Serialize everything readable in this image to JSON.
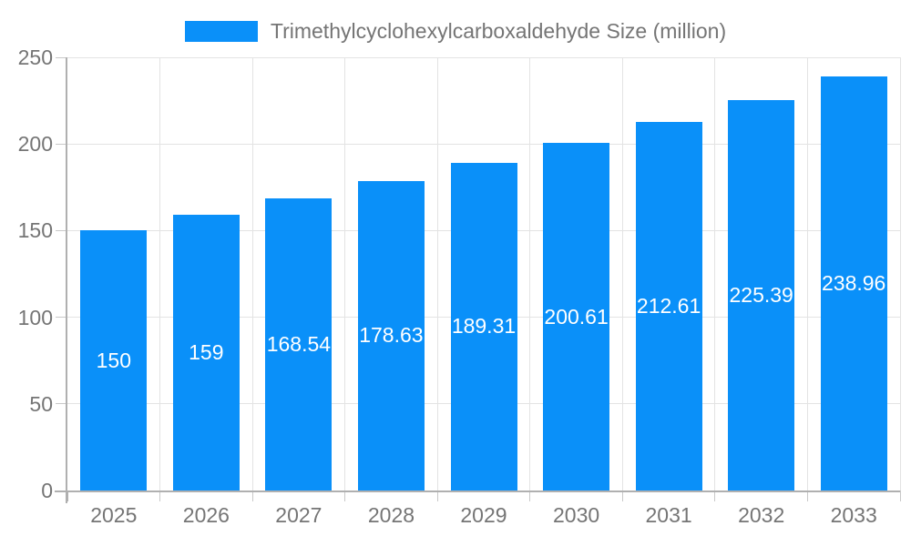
{
  "chart_data": {
    "type": "bar",
    "title": "Trimethylcyclohexylcarboxaldehyde Size (million)",
    "categories": [
      "2025",
      "2026",
      "2027",
      "2028",
      "2029",
      "2030",
      "2031",
      "2032",
      "2033"
    ],
    "values": [
      150,
      159,
      168.54,
      178.63,
      189.31,
      200.61,
      212.61,
      225.39,
      238.96
    ],
    "value_labels": [
      "150",
      "159",
      "168.54",
      "178.63",
      "189.31",
      "200.61",
      "212.61",
      "225.39",
      "238.96"
    ],
    "xlabel": "",
    "ylabel": "",
    "ylim": [
      0,
      250
    ],
    "yticks": [
      0,
      50,
      100,
      150,
      200,
      250
    ],
    "grid": true,
    "legend_position": "top",
    "colors": {
      "bar": "#0a90f9",
      "grid": "#e3e3e3",
      "axis": "#b0b0b0",
      "tick": "#c8c8c8",
      "text": "#757575",
      "value_label": "#ffffff",
      "background": "#ffffff"
    }
  }
}
